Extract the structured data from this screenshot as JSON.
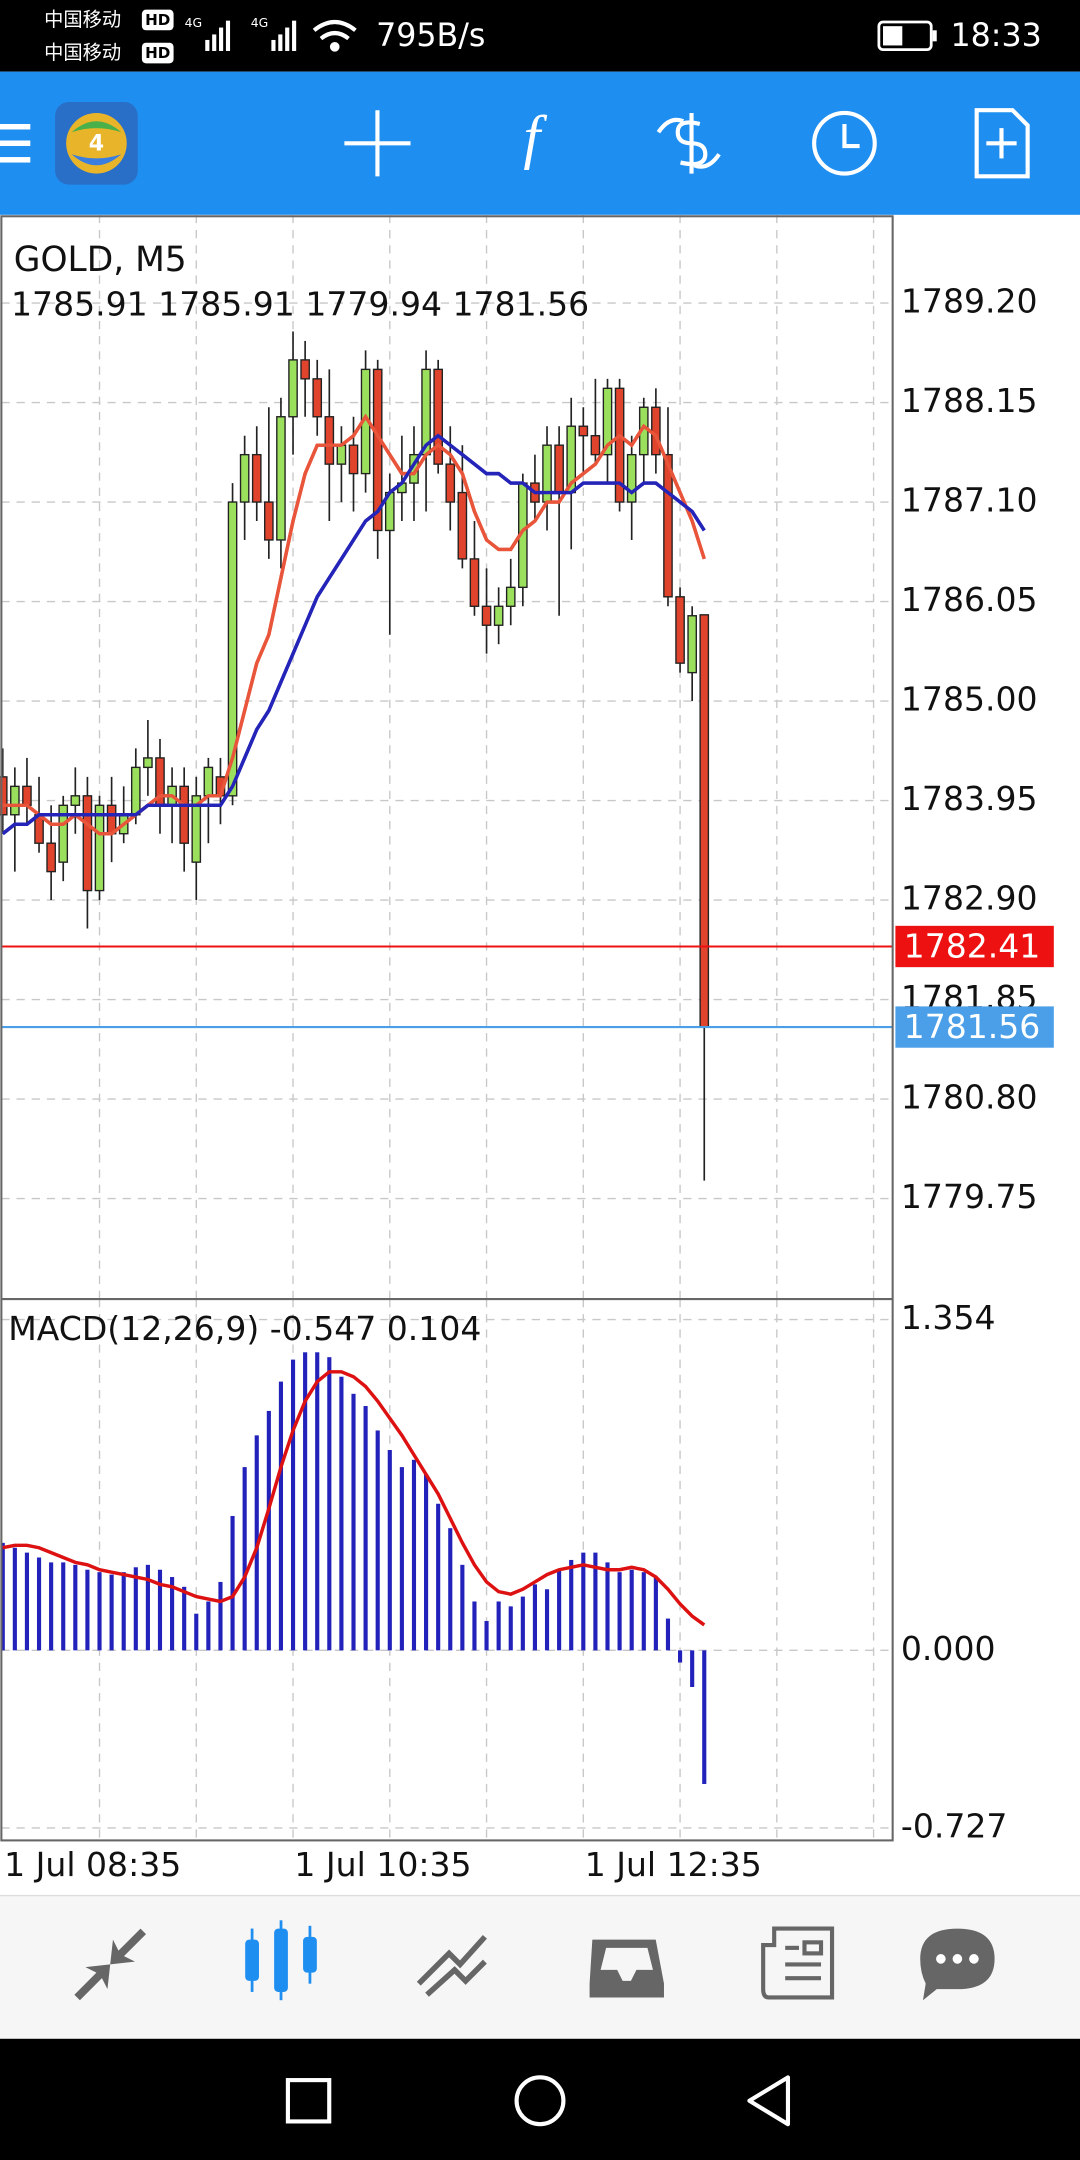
{
  "status_bar": {
    "carrier_1": "中国移动",
    "carrier_2": "中国移动",
    "hd_1": "HD",
    "hd_2": "HD",
    "network_1": "4G",
    "network_2": "4G",
    "net_speed": "795B/s",
    "time": "18:33"
  },
  "chart_data": [
    {
      "type": "candlestick",
      "title": "GOLD, M5",
      "subtitle": "1785.91 1785.91 1779.94 1781.56",
      "up_color": "#9be05c",
      "down_color": "#e0442c",
      "grid": true,
      "ylim": [
        1778.69,
        1790.13
      ],
      "yticks": [
        {
          "value": 1789.2,
          "label": "1789.20"
        },
        1788.15,
        {
          "value": 1787.1,
          "label": "1787.10"
        },
        1786.05,
        {
          "value": 1785.0,
          "label": "1785.00"
        },
        1783.95,
        {
          "value": 1782.9,
          "label": "1782.90"
        },
        1781.85,
        {
          "value": 1780.8,
          "label": "1780.80"
        },
        1779.75
      ],
      "open": [
        1784.2,
        1783.8,
        1784.1,
        1783.8,
        1783.5,
        1783.3,
        1783.9,
        1784.0,
        1783.0,
        1783.9,
        1783.6,
        1783.8,
        1784.3,
        1784.4,
        1783.9,
        1784.1,
        1783.3,
        1784.0,
        1784.2,
        1784.0,
        1787.1,
        1787.6,
        1787.1,
        1786.7,
        1788.0,
        1788.6,
        1788.4,
        1788.0,
        1787.5,
        1787.7,
        1787.4,
        1788.5,
        1786.8,
        1787.2,
        1787.3,
        1787.6,
        1788.5,
        1787.5,
        1787.2,
        1786.5,
        1786.0,
        1785.8,
        1786.0,
        1786.2,
        1787.3,
        1787.1,
        1787.7,
        1787.2,
        1787.9,
        1787.8,
        1787.6,
        1788.3,
        1787.1,
        1787.6,
        1788.1,
        1787.6,
        1786.1,
        1785.3,
        1785.91
      ],
      "high": [
        1784.5,
        1784.3,
        1784.4,
        1784.2,
        1783.9,
        1784.0,
        1784.3,
        1784.2,
        1784.0,
        1784.2,
        1784.1,
        1784.5,
        1784.8,
        1784.6,
        1784.3,
        1784.3,
        1784.2,
        1784.4,
        1784.4,
        1787.3,
        1787.8,
        1787.9,
        1788.1,
        1788.2,
        1788.9,
        1788.8,
        1788.6,
        1788.5,
        1787.9,
        1788.0,
        1788.7,
        1788.6,
        1787.4,
        1787.8,
        1787.9,
        1788.7,
        1788.6,
        1787.9,
        1787.7,
        1786.9,
        1786.4,
        1786.2,
        1786.5,
        1787.4,
        1787.6,
        1787.9,
        1787.9,
        1788.2,
        1788.1,
        1788.4,
        1788.4,
        1788.4,
        1787.8,
        1788.2,
        1788.3,
        1788.1,
        1786.2,
        1786.0,
        1785.91
      ],
      "low": [
        1783.6,
        1783.2,
        1783.7,
        1783.4,
        1782.9,
        1783.1,
        1783.6,
        1782.6,
        1782.9,
        1783.3,
        1783.5,
        1783.7,
        1784.0,
        1783.6,
        1783.5,
        1783.2,
        1782.9,
        1783.5,
        1783.7,
        1783.9,
        1786.7,
        1786.9,
        1786.5,
        1786.4,
        1787.6,
        1788.0,
        1787.8,
        1786.9,
        1787.1,
        1787.0,
        1787.2,
        1786.5,
        1785.7,
        1786.9,
        1786.9,
        1787.0,
        1787.4,
        1786.8,
        1786.4,
        1785.9,
        1785.5,
        1785.6,
        1785.8,
        1786.0,
        1786.9,
        1786.8,
        1785.9,
        1786.6,
        1787.4,
        1787.5,
        1787.3,
        1787.0,
        1786.7,
        1787.3,
        1787.4,
        1786.0,
        1785.3,
        1785.0,
        1779.94
      ],
      "close": [
        1783.8,
        1784.1,
        1783.9,
        1783.5,
        1783.2,
        1783.9,
        1784.0,
        1783.0,
        1783.9,
        1783.6,
        1783.8,
        1784.3,
        1784.4,
        1783.9,
        1784.1,
        1783.5,
        1784.0,
        1784.3,
        1784.0,
        1787.1,
        1787.6,
        1787.1,
        1786.7,
        1788.0,
        1788.6,
        1788.4,
        1788.0,
        1787.5,
        1787.7,
        1787.4,
        1788.5,
        1786.8,
        1787.2,
        1787.3,
        1787.6,
        1788.5,
        1787.5,
        1787.1,
        1786.5,
        1786.0,
        1785.8,
        1786.0,
        1786.2,
        1787.3,
        1787.1,
        1787.7,
        1787.2,
        1787.9,
        1787.8,
        1787.6,
        1788.3,
        1787.1,
        1787.6,
        1788.1,
        1787.6,
        1786.1,
        1785.4,
        1785.9,
        1781.56
      ],
      "lines": [
        {
          "color": "#e8553a",
          "values": [
            1783.9,
            1783.9,
            1783.9,
            1783.8,
            1783.7,
            1783.7,
            1783.8,
            1783.7,
            1783.6,
            1783.6,
            1783.7,
            1783.8,
            1783.9,
            1784.0,
            1784.0,
            1783.9,
            1783.9,
            1784.0,
            1784.0,
            1784.4,
            1784.9,
            1785.4,
            1785.7,
            1786.3,
            1786.9,
            1787.4,
            1787.7,
            1787.7,
            1787.7,
            1787.8,
            1788.0,
            1787.8,
            1787.6,
            1787.4,
            1787.4,
            1787.6,
            1787.7,
            1787.6,
            1787.4,
            1787.0,
            1786.7,
            1786.6,
            1786.6,
            1786.8,
            1786.9,
            1787.1,
            1787.1,
            1787.3,
            1787.4,
            1787.5,
            1787.7,
            1787.8,
            1787.7,
            1787.9,
            1787.8,
            1787.5,
            1787.2,
            1786.9,
            1786.5
          ]
        },
        {
          "color": "#2424b8",
          "values": [
            1783.6,
            1783.7,
            1783.7,
            1783.8,
            1783.8,
            1783.8,
            1783.8,
            1783.8,
            1783.8,
            1783.8,
            1783.8,
            1783.8,
            1783.9,
            1783.9,
            1783.9,
            1783.9,
            1783.9,
            1783.9,
            1783.9,
            1784.1,
            1784.4,
            1784.7,
            1784.9,
            1785.2,
            1785.5,
            1785.8,
            1786.1,
            1786.3,
            1786.5,
            1786.7,
            1786.9,
            1787.0,
            1787.2,
            1787.3,
            1787.5,
            1787.7,
            1787.8,
            1787.7,
            1787.6,
            1787.5,
            1787.4,
            1787.4,
            1787.3,
            1787.3,
            1787.2,
            1787.2,
            1787.2,
            1787.2,
            1787.3,
            1787.3,
            1787.3,
            1787.3,
            1787.2,
            1787.3,
            1787.3,
            1787.2,
            1787.1,
            1787.0,
            1786.8
          ]
        }
      ],
      "price_lines": [
        {
          "value": 1782.41,
          "color": "#ee1111"
        },
        {
          "value": 1781.56,
          "color": "#4a9fe8"
        }
      ]
    },
    {
      "type": "macd",
      "title": "MACD(12,26,9) -0.547 0.104",
      "hist_color": "#2222bb",
      "signal_color": "#dd1111",
      "grid": true,
      "ylim": [
        -0.778,
        1.438
      ],
      "yticks": [
        1.354,
        {
          "value": 0,
          "label": "0.000"
        },
        -0.727
      ],
      "categories": [
        "1 Jul 08:35",
        null,
        null,
        null,
        null,
        null,
        null,
        null,
        null,
        null,
        null,
        null,
        null,
        null,
        null,
        null,
        null,
        null,
        null,
        null,
        null,
        null,
        null,
        null,
        "1 Jul 10:35",
        null,
        null,
        null,
        null,
        null,
        null,
        null,
        null,
        null,
        null,
        null,
        null,
        null,
        null,
        null,
        null,
        null,
        null,
        null,
        null,
        null,
        null,
        null,
        "1 Jul 12:35",
        null,
        null,
        null,
        null,
        null,
        null,
        null,
        null,
        null,
        null
      ],
      "values": [
        0.44,
        0.42,
        0.4,
        0.38,
        0.36,
        0.36,
        0.35,
        0.33,
        0.32,
        0.31,
        0.32,
        0.34,
        0.35,
        0.33,
        0.3,
        0.26,
        0.15,
        0.2,
        0.28,
        0.55,
        0.75,
        0.88,
        0.98,
        1.1,
        1.19,
        1.22,
        1.22,
        1.2,
        1.12,
        1.05,
        1.0,
        0.9,
        0.82,
        0.75,
        0.78,
        0.72,
        0.6,
        0.5,
        0.35,
        0.2,
        0.12,
        0.2,
        0.18,
        0.22,
        0.27,
        0.25,
        0.33,
        0.37,
        0.4,
        0.4,
        0.36,
        0.32,
        0.33,
        0.32,
        0.3,
        0.13,
        -0.05,
        -0.15,
        -0.547
      ],
      "signal": [
        0.42,
        0.43,
        0.43,
        0.42,
        0.4,
        0.38,
        0.36,
        0.35,
        0.33,
        0.32,
        0.31,
        0.3,
        0.29,
        0.27,
        0.26,
        0.24,
        0.22,
        0.21,
        0.2,
        0.22,
        0.3,
        0.42,
        0.58,
        0.75,
        0.9,
        1.02,
        1.1,
        1.14,
        1.14,
        1.12,
        1.08,
        1.02,
        0.95,
        0.88,
        0.8,
        0.72,
        0.64,
        0.54,
        0.44,
        0.35,
        0.28,
        0.24,
        0.23,
        0.25,
        0.28,
        0.31,
        0.33,
        0.34,
        0.35,
        0.34,
        0.33,
        0.33,
        0.34,
        0.33,
        0.3,
        0.25,
        0.19,
        0.14,
        0.104
      ]
    }
  ]
}
